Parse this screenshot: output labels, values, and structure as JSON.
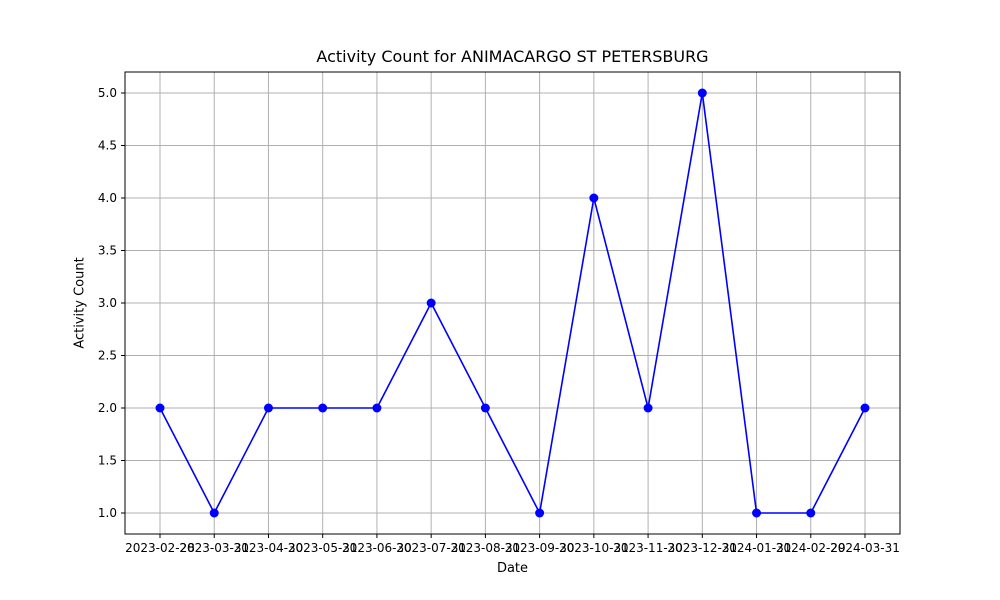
{
  "chart_data": {
    "type": "line",
    "title": "Activity Count for ANIMACARGO ST PETERSBURG",
    "xlabel": "Date",
    "ylabel": "Activity Count",
    "x": [
      "2023-02-28",
      "2023-03-31",
      "2023-04-30",
      "2023-05-31",
      "2023-06-30",
      "2023-07-31",
      "2023-08-31",
      "2023-09-30",
      "2023-10-31",
      "2023-11-30",
      "2023-12-31",
      "2024-01-31",
      "2024-02-29",
      "2024-03-31"
    ],
    "series": [
      {
        "values": [
          2,
          1,
          2,
          2,
          2,
          3,
          2,
          1,
          4,
          2,
          5,
          1,
          1,
          2
        ],
        "color": "#0000ff"
      }
    ],
    "ylim": [
      0.8,
      5.2
    ],
    "yticks": [
      "1.0",
      "1.5",
      "2.0",
      "2.5",
      "3.0",
      "3.5",
      "4.0",
      "4.5",
      "5.0"
    ],
    "grid": true,
    "marker": "circle"
  }
}
